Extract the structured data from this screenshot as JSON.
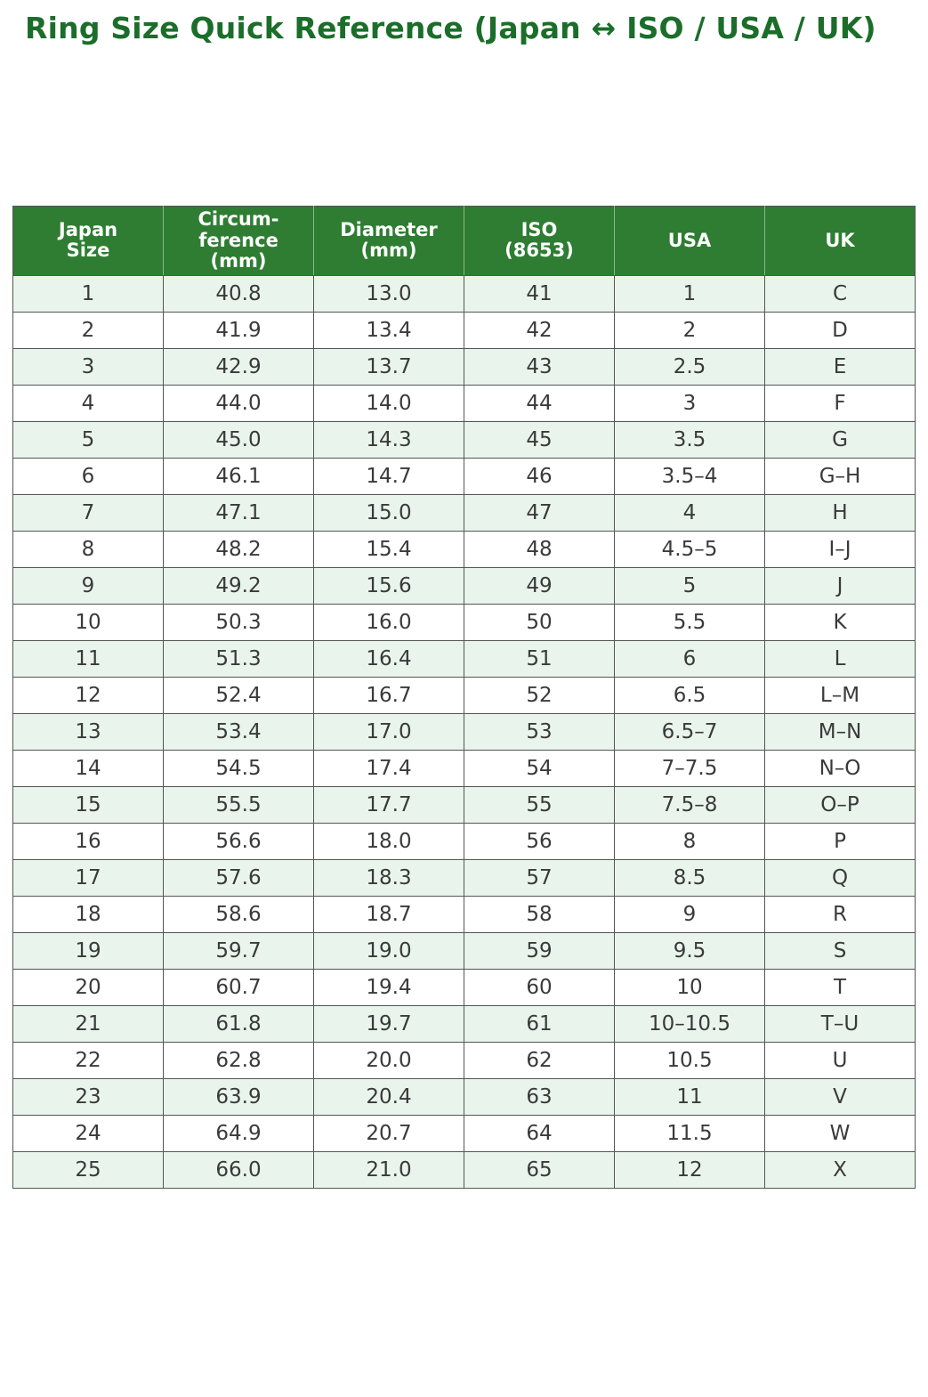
{
  "page": {
    "title": "Ring Size Quick Reference (Japan ↔ ISO / USA / UK)"
  },
  "colors": {
    "title_color": "#1b6e2a",
    "header_bg": "#2e7d32",
    "header_text": "#ffffff",
    "row_alt_bg": "#e9f5ec",
    "row_bg": "#ffffff",
    "cell_text": "#3a3a3a",
    "grid_line": "#555555"
  },
  "table": {
    "columns": [
      {
        "id": "japan-size",
        "lines": [
          "Japan",
          "Size"
        ]
      },
      {
        "id": "circumference-mm",
        "lines": [
          "Circum-",
          "ference",
          "(mm)"
        ]
      },
      {
        "id": "diameter-mm",
        "lines": [
          "Diameter",
          "(mm)"
        ]
      },
      {
        "id": "iso-8653",
        "lines": [
          "ISO",
          "(8653)"
        ]
      },
      {
        "id": "usa",
        "lines": [
          "USA"
        ]
      },
      {
        "id": "uk",
        "lines": [
          "UK"
        ]
      }
    ],
    "rows": [
      [
        "1",
        "40.8",
        "13.0",
        "41",
        "1",
        "C"
      ],
      [
        "2",
        "41.9",
        "13.4",
        "42",
        "2",
        "D"
      ],
      [
        "3",
        "42.9",
        "13.7",
        "43",
        "2.5",
        "E"
      ],
      [
        "4",
        "44.0",
        "14.0",
        "44",
        "3",
        "F"
      ],
      [
        "5",
        "45.0",
        "14.3",
        "45",
        "3.5",
        "G"
      ],
      [
        "6",
        "46.1",
        "14.7",
        "46",
        "3.5–4",
        "G–H"
      ],
      [
        "7",
        "47.1",
        "15.0",
        "47",
        "4",
        "H"
      ],
      [
        "8",
        "48.2",
        "15.4",
        "48",
        "4.5–5",
        "I–J"
      ],
      [
        "9",
        "49.2",
        "15.6",
        "49",
        "5",
        "J"
      ],
      [
        "10",
        "50.3",
        "16.0",
        "50",
        "5.5",
        "K"
      ],
      [
        "11",
        "51.3",
        "16.4",
        "51",
        "6",
        "L"
      ],
      [
        "12",
        "52.4",
        "16.7",
        "52",
        "6.5",
        "L–M"
      ],
      [
        "13",
        "53.4",
        "17.0",
        "53",
        "6.5–7",
        "M–N"
      ],
      [
        "14",
        "54.5",
        "17.4",
        "54",
        "7–7.5",
        "N–O"
      ],
      [
        "15",
        "55.5",
        "17.7",
        "55",
        "7.5–8",
        "O–P"
      ],
      [
        "16",
        "56.6",
        "18.0",
        "56",
        "8",
        "P"
      ],
      [
        "17",
        "57.6",
        "18.3",
        "57",
        "8.5",
        "Q"
      ],
      [
        "18",
        "58.6",
        "18.7",
        "58",
        "9",
        "R"
      ],
      [
        "19",
        "59.7",
        "19.0",
        "59",
        "9.5",
        "S"
      ],
      [
        "20",
        "60.7",
        "19.4",
        "60",
        "10",
        "T"
      ],
      [
        "21",
        "61.8",
        "19.7",
        "61",
        "10–10.5",
        "T–U"
      ],
      [
        "22",
        "62.8",
        "20.0",
        "62",
        "10.5",
        "U"
      ],
      [
        "23",
        "63.9",
        "20.4",
        "63",
        "11",
        "V"
      ],
      [
        "24",
        "64.9",
        "20.7",
        "64",
        "11.5",
        "W"
      ],
      [
        "25",
        "66.0",
        "21.0",
        "65",
        "12",
        "X"
      ]
    ]
  }
}
